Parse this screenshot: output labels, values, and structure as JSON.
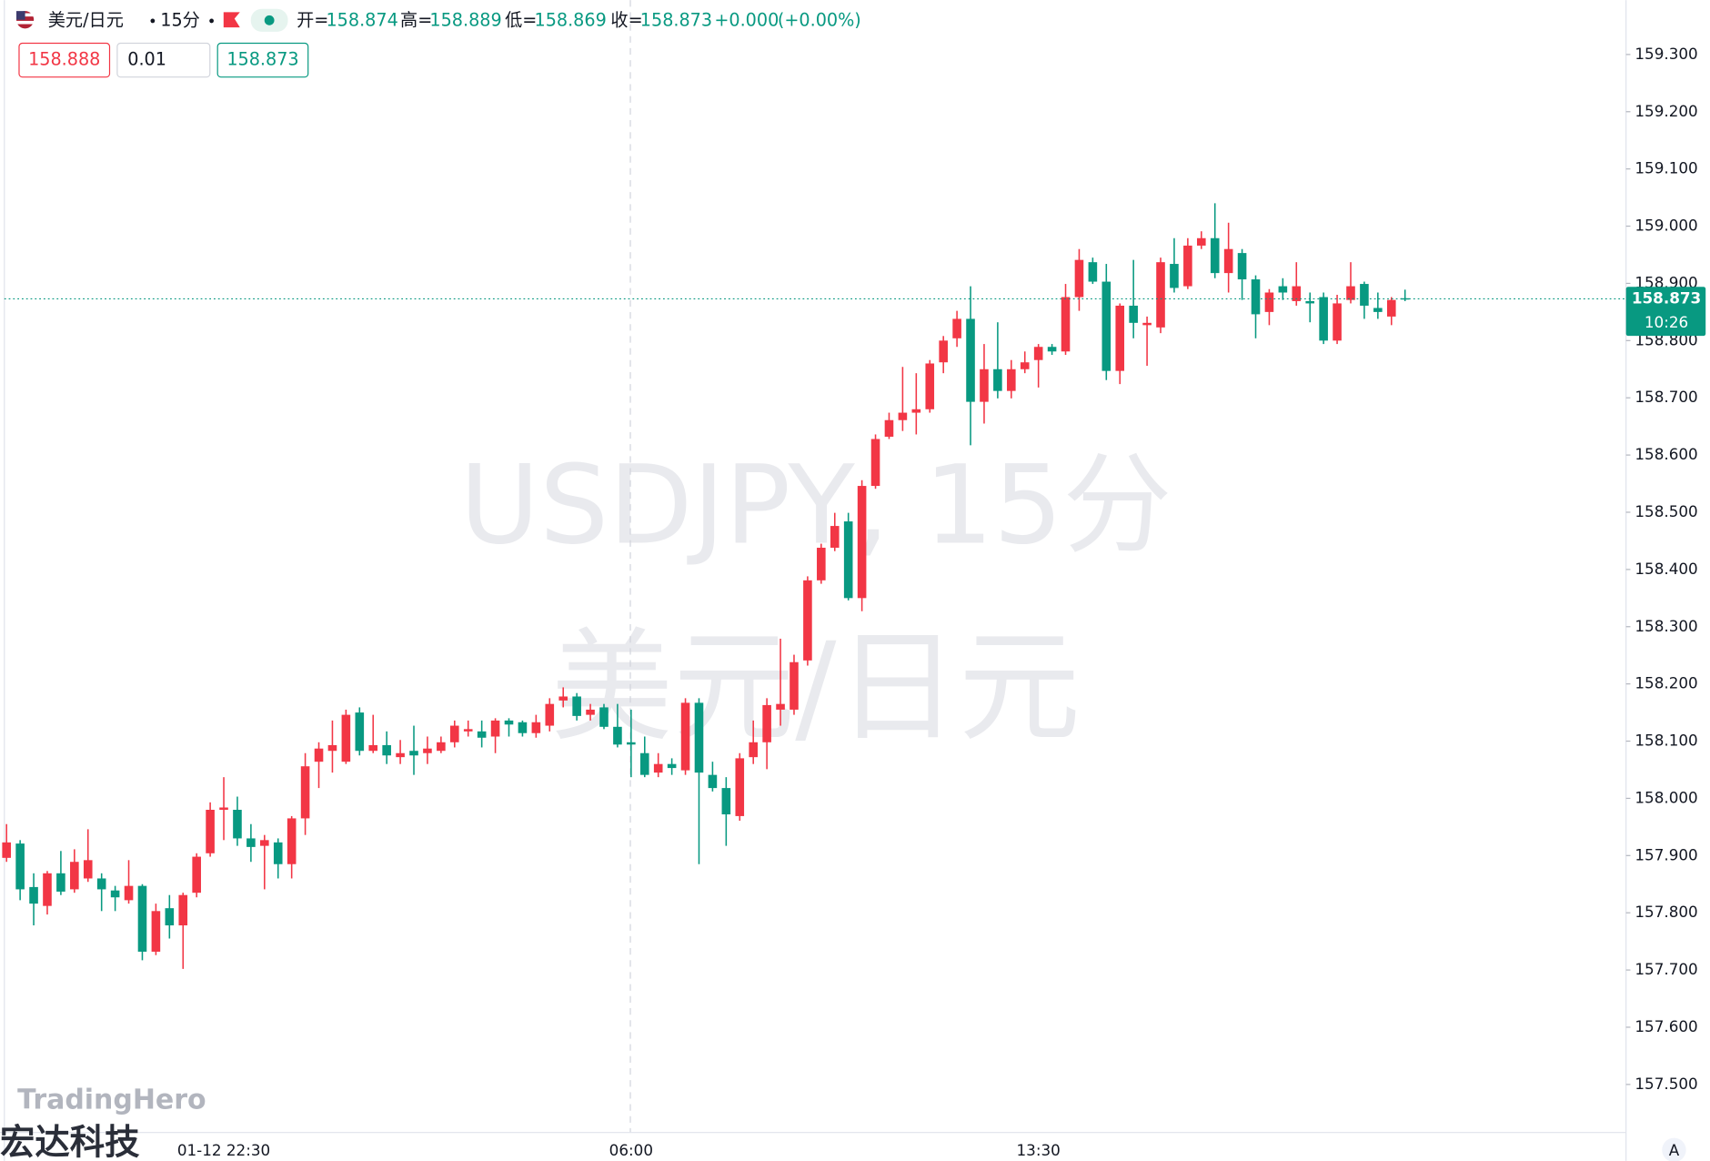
{
  "header": {
    "symbol": "美元/日元",
    "interval": "15分",
    "open_label": "开=",
    "open": 158.874,
    "high_label": "高=",
    "high": 158.889,
    "low_label": "低=",
    "low": 158.869,
    "close_label": "收=",
    "close": 158.873,
    "change": "+0.000",
    "change_pct": "(+0.00%)"
  },
  "order": {
    "sell": 158.888,
    "quantity": 0.01,
    "buy": 158.873
  },
  "watermark": {
    "line1": "USDJPY, 15分",
    "line2": "美元/日元"
  },
  "logo": {
    "en": "TradingHero",
    "cn": "宏达科技"
  },
  "scale_button": "A",
  "chart_data": {
    "type": "candlestick",
    "categories": [
      null,
      null,
      null,
      null,
      null,
      null,
      null,
      null,
      null,
      null,
      null,
      null,
      null,
      null,
      null,
      null,
      "01-12 22:30",
      null,
      null,
      null,
      null,
      null,
      null,
      null,
      null,
      null,
      null,
      null,
      null,
      null,
      null,
      null,
      null,
      null,
      null,
      null,
      null,
      null,
      null,
      null,
      null,
      null,
      null,
      null,
      null,
      null,
      "06:00",
      null,
      null,
      null,
      null,
      null,
      null,
      null,
      null,
      null,
      null,
      null,
      null,
      null,
      null,
      null,
      null,
      null,
      null,
      null,
      null,
      null,
      null,
      null,
      null,
      null,
      null,
      null,
      null,
      null,
      "13:30",
      null,
      null,
      null,
      null,
      null,
      null,
      null,
      null,
      null,
      null,
      null,
      null,
      null,
      null,
      null,
      null,
      null,
      null,
      null,
      null,
      null,
      null,
      null,
      null,
      null,
      null,
      null
    ],
    "open": [
      157.896,
      157.921,
      157.845,
      157.812,
      157.869,
      157.841,
      157.86,
      157.86,
      157.839,
      157.822,
      157.847,
      157.732,
      157.808,
      157.778,
      157.835,
      157.904,
      157.98,
      157.98,
      157.93,
      157.917,
      157.923,
      157.885,
      157.965,
      158.064,
      158.083,
      158.064,
      158.15,
      158.083,
      158.093,
      158.072,
      158.083,
      158.079,
      158.083,
      158.098,
      158.117,
      158.117,
      158.108,
      158.136,
      158.133,
      158.114,
      158.127,
      158.171,
      158.178,
      158.146,
      158.159,
      158.125,
      158.098,
      158.079,
      158.045,
      158.06,
      158.049,
      158.167,
      158.041,
      158.018,
      157.969,
      158.072,
      158.098,
      158.155,
      158.155,
      158.241,
      158.381,
      158.438,
      158.484,
      158.35,
      158.546,
      158.632,
      158.661,
      158.674,
      158.68,
      158.762,
      158.804,
      158.838,
      158.693,
      158.75,
      158.712,
      158.75,
      158.766,
      158.789,
      158.781,
      158.876,
      158.937,
      158.903,
      158.747,
      158.861,
      158.827,
      158.823,
      158.934,
      158.895,
      158.966,
      158.979,
      158.918,
      158.953,
      158.907,
      158.85,
      158.895,
      158.869,
      158.869,
      158.876,
      158.8,
      158.871,
      158.899,
      158.857,
      158.842,
      158.874
    ],
    "high": [
      157.955,
      157.927,
      157.869,
      157.873,
      157.908,
      157.911,
      157.946,
      157.869,
      157.847,
      157.892,
      157.85,
      157.816,
      157.831,
      157.835,
      157.904,
      157.993,
      158.037,
      158.003,
      157.955,
      157.936,
      157.93,
      157.969,
      158.079,
      158.098,
      158.136,
      158.155,
      158.159,
      158.146,
      158.117,
      158.102,
      158.127,
      158.108,
      158.108,
      158.136,
      158.136,
      158.136,
      158.14,
      158.14,
      158.136,
      158.146,
      158.175,
      158.194,
      158.184,
      158.165,
      158.165,
      158.165,
      158.155,
      158.108,
      158.079,
      158.07,
      158.175,
      158.175,
      158.064,
      158.037,
      158.079,
      158.136,
      158.175,
      158.279,
      158.251,
      158.388,
      158.445,
      158.499,
      158.499,
      158.556,
      158.636,
      158.674,
      158.754,
      158.743,
      158.766,
      158.808,
      158.852,
      158.895,
      158.794,
      158.832,
      158.766,
      158.781,
      158.794,
      158.794,
      158.899,
      158.96,
      158.945,
      158.934,
      158.865,
      158.941,
      158.842,
      158.945,
      158.979,
      158.979,
      158.991,
      159.04,
      159.006,
      158.96,
      158.914,
      158.89,
      158.909,
      158.937,
      158.884,
      158.884,
      158.88,
      158.937,
      158.903,
      158.884,
      158.876,
      158.889
    ],
    "low": [
      157.889,
      157.822,
      157.778,
      157.797,
      157.831,
      157.835,
      157.854,
      157.803,
      157.803,
      157.816,
      157.717,
      157.726,
      157.755,
      157.702,
      157.827,
      157.898,
      157.927,
      157.917,
      157.889,
      157.841,
      157.86,
      157.86,
      157.936,
      158.018,
      158.045,
      158.06,
      158.075,
      158.079,
      158.06,
      158.06,
      158.041,
      158.06,
      158.079,
      158.089,
      158.108,
      158.089,
      158.079,
      158.108,
      158.108,
      158.106,
      158.117,
      158.159,
      158.136,
      158.136,
      158.121,
      158.089,
      158.037,
      158.037,
      158.037,
      158.041,
      158.041,
      157.885,
      158.012,
      157.917,
      157.961,
      158.06,
      158.051,
      158.127,
      158.146,
      158.232,
      158.375,
      158.432,
      158.346,
      158.327,
      158.541,
      158.628,
      158.642,
      158.636,
      158.674,
      158.743,
      158.789,
      158.617,
      158.655,
      158.699,
      158.699,
      158.743,
      158.718,
      158.775,
      158.775,
      158.852,
      158.899,
      158.731,
      158.724,
      158.804,
      158.756,
      158.813,
      158.884,
      158.89,
      158.96,
      158.909,
      158.884,
      158.871,
      158.804,
      158.827,
      158.871,
      158.861,
      158.832,
      158.794,
      158.794,
      158.865,
      158.838,
      158.838,
      158.827,
      158.869
    ],
    "close": [
      157.923,
      157.841,
      157.816,
      157.869,
      157.837,
      157.889,
      157.892,
      157.841,
      157.827,
      157.847,
      157.732,
      157.803,
      157.778,
      157.831,
      157.898,
      157.98,
      157.984,
      157.93,
      157.915,
      157.927,
      157.885,
      157.965,
      158.056,
      158.087,
      158.093,
      158.146,
      158.083,
      158.093,
      158.075,
      158.079,
      158.075,
      158.087,
      158.098,
      158.127,
      158.121,
      158.106,
      158.136,
      158.129,
      158.114,
      158.133,
      158.165,
      158.178,
      158.144,
      158.155,
      158.125,
      158.094,
      158.094,
      158.041,
      158.06,
      158.053,
      158.167,
      158.045,
      158.018,
      157.972,
      158.07,
      158.098,
      158.163,
      158.165,
      158.238,
      158.381,
      158.438,
      158.476,
      158.35,
      158.546,
      158.628,
      158.661,
      158.674,
      158.68,
      158.76,
      158.8,
      158.838,
      158.693,
      158.75,
      158.712,
      158.75,
      158.762,
      158.789,
      158.781,
      158.876,
      158.941,
      158.903,
      158.747,
      158.861,
      158.831,
      158.831,
      158.937,
      158.892,
      158.966,
      158.979,
      158.918,
      158.96,
      158.907,
      158.846,
      158.884,
      158.884,
      158.895,
      158.865,
      158.8,
      158.865,
      158.895,
      158.861,
      158.85,
      158.871,
      158.873
    ],
    "up_color": "#f23645",
    "down_color": "#089981",
    "ylim": [
      157.416,
      159.395
    ],
    "yticks": [
      {
        "value": 157.5,
        "label": "157.500"
      },
      {
        "value": 157.6,
        "label": "157.600"
      },
      {
        "value": 157.7,
        "label": "157.700"
      },
      {
        "value": 157.8,
        "label": "157.800"
      },
      {
        "value": 157.9,
        "label": "157.900"
      },
      {
        "value": 158.0,
        "label": "158.000"
      },
      {
        "value": 158.1,
        "label": "158.100"
      },
      {
        "value": 158.2,
        "label": "158.200"
      },
      {
        "value": 158.3,
        "label": "158.300"
      },
      {
        "value": 158.4,
        "label": "158.400"
      },
      {
        "value": 158.5,
        "label": "158.500"
      },
      {
        "value": 158.6,
        "label": "158.600"
      },
      {
        "value": 158.7,
        "label": "158.700"
      },
      {
        "value": 158.8,
        "label": "158.800"
      },
      {
        "value": 158.9,
        "label": "158.900"
      },
      {
        "value": 159.0,
        "label": "159.000"
      },
      {
        "value": 159.1,
        "label": "159.100"
      },
      {
        "value": 159.2,
        "label": "159.200"
      },
      {
        "value": 159.3,
        "label": "159.300"
      }
    ],
    "countdown": "10:26"
  }
}
